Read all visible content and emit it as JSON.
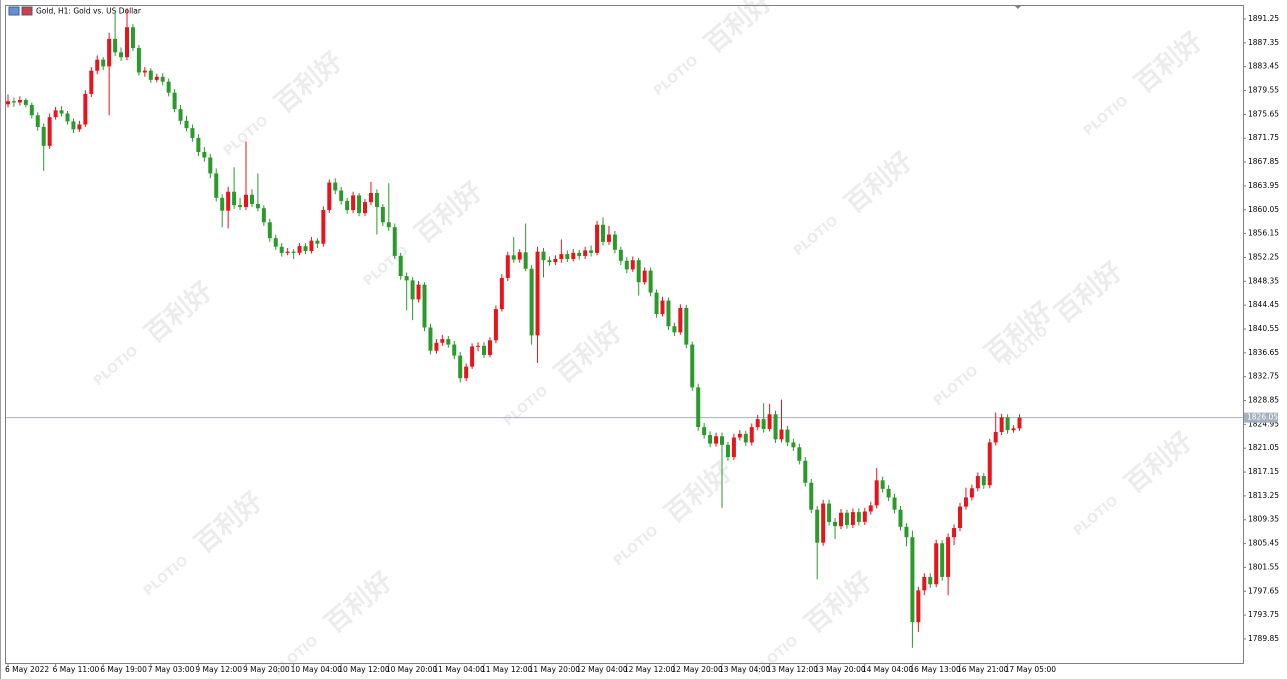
{
  "chart_data": {
    "type": "candlestick",
    "title": "Gold, H1:  Gold vs. US Dollar",
    "watermark": {
      "logo": "PLOTIO",
      "text": "百利好"
    },
    "up_color": "#e8141c",
    "down_color": "#2a9a2a",
    "grid": false,
    "current_price": 1826.05,
    "current_price_color": "#a4b0c0",
    "ylim": [
      1785.92,
      1893.54
    ],
    "yticks": [
      1891.25,
      1887.35,
      1883.45,
      1879.55,
      1875.65,
      1871.75,
      1867.85,
      1863.95,
      1860.05,
      1856.15,
      1852.25,
      1848.35,
      1844.45,
      1840.55,
      1836.65,
      1832.75,
      1828.85,
      1824.95,
      1821.05,
      1817.15,
      1813.25,
      1809.35,
      1805.45,
      1801.55,
      1797.65,
      1793.75,
      1789.85
    ],
    "categories": [
      "6 May 2022",
      null,
      null,
      null,
      null,
      null,
      null,
      null,
      "6 May 11:00",
      null,
      null,
      null,
      null,
      null,
      null,
      null,
      "6 May 19:00",
      null,
      null,
      null,
      null,
      null,
      null,
      null,
      "7 May 03:00",
      null,
      null,
      null,
      null,
      null,
      null,
      null,
      "9 May 12:00",
      null,
      null,
      null,
      null,
      null,
      null,
      null,
      "9 May 20:00",
      null,
      null,
      null,
      null,
      null,
      null,
      null,
      "10 May 04:00",
      null,
      null,
      null,
      null,
      null,
      null,
      null,
      "10 May 12:00",
      null,
      null,
      null,
      null,
      null,
      null,
      null,
      "10 May 20:00",
      null,
      null,
      null,
      null,
      null,
      null,
      null,
      "11 May 04:00",
      null,
      null,
      null,
      null,
      null,
      null,
      null,
      "11 May 12:00",
      null,
      null,
      null,
      null,
      null,
      null,
      null,
      "11 May 20:00",
      null,
      null,
      null,
      null,
      null,
      null,
      null,
      "12 May 04:00",
      null,
      null,
      null,
      null,
      null,
      null,
      null,
      "12 May 12:00",
      null,
      null,
      null,
      null,
      null,
      null,
      null,
      "12 May 20:00",
      null,
      null,
      null,
      null,
      null,
      null,
      null,
      "13 May 04:00",
      null,
      null,
      null,
      null,
      null,
      null,
      null,
      "13 May 12:00",
      null,
      null,
      null,
      null,
      null,
      null,
      null,
      "13 May 20:00",
      null,
      null,
      null,
      null,
      null,
      null,
      null,
      "14 May 04:00",
      null,
      null,
      null,
      null,
      null,
      null,
      null,
      "16 May 13:00",
      null,
      null,
      null,
      null,
      null,
      null,
      null,
      "16 May 21:00",
      null,
      null,
      null,
      null,
      null,
      null,
      null,
      "17 May 05:00",
      null,
      null
    ],
    "ohlc": [
      [
        1877.3,
        1878.9,
        1876.8,
        1877.8
      ],
      [
        1877.8,
        1878.4,
        1876.9,
        1877.6
      ],
      [
        1877.6,
        1878.6,
        1877.1,
        1878.0
      ],
      [
        1878.0,
        1878.3,
        1876.8,
        1877.2
      ],
      [
        1877.2,
        1877.6,
        1875.0,
        1875.5
      ],
      [
        1875.5,
        1876.0,
        1873.0,
        1873.6
      ],
      [
        1873.6,
        1874.2,
        1866.4,
        1870.5
      ],
      [
        1870.5,
        1875.8,
        1870.0,
        1875.2
      ],
      [
        1875.2,
        1876.9,
        1874.8,
        1876.3
      ],
      [
        1876.3,
        1877.0,
        1875.3,
        1875.8
      ],
      [
        1875.8,
        1876.2,
        1874.0,
        1874.5
      ],
      [
        1874.5,
        1875.0,
        1872.6,
        1873.2
      ],
      [
        1873.2,
        1874.6,
        1872.8,
        1874.0
      ],
      [
        1874.0,
        1879.6,
        1873.6,
        1879.0
      ],
      [
        1879.0,
        1883.4,
        1878.5,
        1882.8
      ],
      [
        1882.8,
        1885.3,
        1882.2,
        1884.6
      ],
      [
        1884.6,
        1885.0,
        1882.9,
        1883.5
      ],
      [
        1883.5,
        1889.0,
        1875.5,
        1888.0
      ],
      [
        1888.0,
        1892.5,
        1885.2,
        1885.8
      ],
      [
        1885.8,
        1886.6,
        1884.4,
        1885.0
      ],
      [
        1885.0,
        1893.0,
        1884.5,
        1889.9
      ],
      [
        1889.9,
        1890.4,
        1886.0,
        1886.5
      ],
      [
        1886.5,
        1887.0,
        1882.0,
        1882.5
      ],
      [
        1882.5,
        1883.4,
        1881.8,
        1882.8
      ],
      [
        1882.8,
        1883.2,
        1880.8,
        1881.3
      ],
      [
        1881.3,
        1882.3,
        1880.9,
        1881.8
      ],
      [
        1881.8,
        1882.4,
        1880.4,
        1881.0
      ],
      [
        1881.0,
        1881.5,
        1878.6,
        1879.2
      ],
      [
        1879.2,
        1879.8,
        1876.0,
        1876.5
      ],
      [
        1876.5,
        1877.2,
        1874.0,
        1874.6
      ],
      [
        1874.6,
        1875.4,
        1872.9,
        1873.4
      ],
      [
        1873.4,
        1874.0,
        1871.2,
        1871.8
      ],
      [
        1871.8,
        1872.4,
        1868.8,
        1869.5
      ],
      [
        1869.5,
        1870.3,
        1867.9,
        1868.6
      ],
      [
        1868.6,
        1869.2,
        1865.2,
        1866.0
      ],
      [
        1866.0,
        1866.8,
        1861.4,
        1862.0
      ],
      [
        1862.0,
        1862.6,
        1857.2,
        1859.9
      ],
      [
        1859.9,
        1863.8,
        1857.0,
        1863.0
      ],
      [
        1863.0,
        1867.0,
        1860.2,
        1860.8
      ],
      [
        1860.8,
        1862.0,
        1860.0,
        1860.5
      ],
      [
        1860.5,
        1871.2,
        1860.0,
        1862.5
      ],
      [
        1862.5,
        1863.4,
        1860.5,
        1861.0
      ],
      [
        1861.0,
        1866.0,
        1859.8,
        1860.3
      ],
      [
        1860.3,
        1860.8,
        1857.4,
        1858.0
      ],
      [
        1858.0,
        1858.6,
        1854.8,
        1855.4
      ],
      [
        1855.4,
        1856.0,
        1853.5,
        1854.0
      ],
      [
        1854.0,
        1854.6,
        1852.4,
        1853.0
      ],
      [
        1853.0,
        1853.8,
        1852.6,
        1853.2
      ],
      [
        1853.2,
        1853.6,
        1852.0,
        1853.0
      ],
      [
        1853.0,
        1854.6,
        1852.6,
        1854.1
      ],
      [
        1854.1,
        1854.6,
        1852.8,
        1853.3
      ],
      [
        1853.3,
        1855.6,
        1852.9,
        1855.0
      ],
      [
        1855.0,
        1855.4,
        1853.8,
        1854.5
      ],
      [
        1854.5,
        1860.6,
        1854.0,
        1860.0
      ],
      [
        1860.0,
        1865.0,
        1859.5,
        1864.5
      ],
      [
        1864.5,
        1865.2,
        1862.6,
        1863.2
      ],
      [
        1863.2,
        1863.8,
        1860.9,
        1861.5
      ],
      [
        1861.5,
        1862.0,
        1859.4,
        1860.0
      ],
      [
        1860.0,
        1863.0,
        1859.5,
        1862.4
      ],
      [
        1862.4,
        1862.8,
        1859.0,
        1859.5
      ],
      [
        1859.5,
        1861.8,
        1859.0,
        1861.3
      ],
      [
        1861.3,
        1864.6,
        1860.8,
        1862.8
      ],
      [
        1862.8,
        1863.4,
        1856.0,
        1860.5
      ],
      [
        1860.5,
        1861.0,
        1857.4,
        1858.0
      ],
      [
        1858.0,
        1864.4,
        1856.6,
        1857.2
      ],
      [
        1857.2,
        1857.8,
        1852.0,
        1852.5
      ],
      [
        1852.5,
        1853.0,
        1848.6,
        1849.2
      ],
      [
        1849.2,
        1849.8,
        1843.6,
        1848.5
      ],
      [
        1848.5,
        1849.0,
        1842.0,
        1845.4
      ],
      [
        1845.4,
        1848.4,
        1844.9,
        1847.8
      ],
      [
        1847.8,
        1848.2,
        1840.2,
        1840.8
      ],
      [
        1840.8,
        1841.4,
        1836.4,
        1837.0
      ],
      [
        1837.0,
        1838.9,
        1836.5,
        1838.3
      ],
      [
        1838.3,
        1839.6,
        1837.8,
        1838.9
      ],
      [
        1838.9,
        1839.4,
        1837.5,
        1838.0
      ],
      [
        1838.0,
        1838.6,
        1835.6,
        1836.2
      ],
      [
        1836.2,
        1836.8,
        1831.8,
        1832.5
      ],
      [
        1832.5,
        1834.9,
        1832.0,
        1834.4
      ],
      [
        1834.4,
        1838.2,
        1834.0,
        1837.7
      ],
      [
        1837.7,
        1838.4,
        1836.9,
        1837.8
      ],
      [
        1837.8,
        1838.4,
        1835.8,
        1836.3
      ],
      [
        1836.3,
        1839.2,
        1835.9,
        1838.7
      ],
      [
        1838.7,
        1844.4,
        1838.2,
        1843.8
      ],
      [
        1843.8,
        1849.5,
        1843.4,
        1848.9
      ],
      [
        1848.9,
        1853.2,
        1848.4,
        1852.6
      ],
      [
        1852.6,
        1855.6,
        1851.4,
        1851.9
      ],
      [
        1851.9,
        1853.6,
        1851.4,
        1853.1
      ],
      [
        1853.1,
        1857.8,
        1850.0,
        1850.4
      ],
      [
        1850.4,
        1851.0,
        1838.0,
        1839.5
      ],
      [
        1839.5,
        1854.0,
        1835.0,
        1853.2
      ],
      [
        1853.2,
        1853.8,
        1849.0,
        1851.8
      ],
      [
        1851.8,
        1852.4,
        1850.9,
        1851.5
      ],
      [
        1851.5,
        1852.6,
        1851.0,
        1852.0
      ],
      [
        1852.0,
        1855.2,
        1851.4,
        1852.8
      ],
      [
        1852.8,
        1853.4,
        1851.5,
        1852.0
      ],
      [
        1852.0,
        1853.6,
        1851.6,
        1853.0
      ],
      [
        1853.0,
        1853.5,
        1851.9,
        1852.5
      ],
      [
        1852.5,
        1854.0,
        1852.0,
        1853.4
      ],
      [
        1853.4,
        1854.2,
        1852.4,
        1853.0
      ],
      [
        1853.0,
        1858.2,
        1852.6,
        1857.6
      ],
      [
        1857.6,
        1858.8,
        1854.2,
        1854.8
      ],
      [
        1854.8,
        1857.4,
        1854.3,
        1856.0
      ],
      [
        1856.0,
        1856.6,
        1852.9,
        1853.5
      ],
      [
        1853.5,
        1854.0,
        1851.0,
        1851.7
      ],
      [
        1851.7,
        1852.3,
        1849.7,
        1850.3
      ],
      [
        1850.3,
        1852.4,
        1849.9,
        1851.8
      ],
      [
        1851.8,
        1852.2,
        1846.0,
        1848.2
      ],
      [
        1848.2,
        1850.6,
        1847.8,
        1850.1
      ],
      [
        1850.1,
        1850.6,
        1845.9,
        1846.5
      ],
      [
        1846.5,
        1847.0,
        1842.4,
        1843.0
      ],
      [
        1843.0,
        1845.8,
        1842.6,
        1845.2
      ],
      [
        1845.2,
        1845.7,
        1840.4,
        1841.0
      ],
      [
        1841.0,
        1841.6,
        1839.4,
        1840.0
      ],
      [
        1840.0,
        1844.6,
        1839.6,
        1844.0
      ],
      [
        1844.0,
        1844.5,
        1837.4,
        1838.0
      ],
      [
        1838.0,
        1838.5,
        1830.4,
        1831.0
      ],
      [
        1831.0,
        1831.6,
        1823.9,
        1824.5
      ],
      [
        1824.5,
        1825.2,
        1822.6,
        1823.2
      ],
      [
        1823.2,
        1823.8,
        1821.2,
        1821.8
      ],
      [
        1821.8,
        1823.6,
        1821.3,
        1823.0
      ],
      [
        1823.0,
        1823.6,
        1811.3,
        1821.6
      ],
      [
        1821.6,
        1822.1,
        1819.0,
        1819.6
      ],
      [
        1819.6,
        1823.4,
        1819.1,
        1822.8
      ],
      [
        1822.8,
        1824.0,
        1822.3,
        1823.4
      ],
      [
        1823.4,
        1823.9,
        1821.4,
        1822.0
      ],
      [
        1822.0,
        1825.1,
        1821.5,
        1824.5
      ],
      [
        1824.5,
        1826.5,
        1824.0,
        1825.8
      ],
      [
        1825.8,
        1828.4,
        1823.6,
        1824.2
      ],
      [
        1824.2,
        1828.3,
        1823.8,
        1826.6
      ],
      [
        1826.6,
        1827.2,
        1821.9,
        1822.5
      ],
      [
        1822.5,
        1829.0,
        1822.0,
        1824.1
      ],
      [
        1824.1,
        1824.7,
        1821.4,
        1822.0
      ],
      [
        1822.0,
        1822.6,
        1820.6,
        1821.2
      ],
      [
        1821.2,
        1821.8,
        1818.4,
        1819.0
      ],
      [
        1819.0,
        1819.6,
        1814.8,
        1815.4
      ],
      [
        1815.4,
        1816.0,
        1810.4,
        1811.0
      ],
      [
        1811.0,
        1811.6,
        1799.6,
        1805.6
      ],
      [
        1805.6,
        1812.6,
        1805.1,
        1812.0
      ],
      [
        1812.0,
        1812.6,
        1808.4,
        1809.0
      ],
      [
        1809.0,
        1809.6,
        1806.2,
        1808.3
      ],
      [
        1808.3,
        1811.1,
        1807.8,
        1810.5
      ],
      [
        1810.5,
        1811.0,
        1807.9,
        1808.5
      ],
      [
        1808.5,
        1811.2,
        1808.0,
        1810.6
      ],
      [
        1810.6,
        1811.2,
        1808.4,
        1809.0
      ],
      [
        1809.0,
        1811.3,
        1808.5,
        1810.7
      ],
      [
        1810.7,
        1812.3,
        1810.2,
        1811.7
      ],
      [
        1811.7,
        1817.8,
        1811.2,
        1815.8
      ],
      [
        1815.8,
        1816.4,
        1813.8,
        1814.4
      ],
      [
        1814.4,
        1815.0,
        1812.4,
        1813.0
      ],
      [
        1813.0,
        1813.6,
        1810.4,
        1811.0
      ],
      [
        1811.0,
        1811.6,
        1807.6,
        1808.2
      ],
      [
        1808.2,
        1808.8,
        1805.0,
        1806.5
      ],
      [
        1806.5,
        1807.6,
        1788.4,
        1792.6
      ],
      [
        1792.6,
        1798.4,
        1791.0,
        1797.8
      ],
      [
        1797.8,
        1800.6,
        1797.0,
        1800.0
      ],
      [
        1800.0,
        1800.6,
        1798.2,
        1798.8
      ],
      [
        1798.8,
        1806.1,
        1798.3,
        1805.5
      ],
      [
        1805.5,
        1806.0,
        1799.4,
        1800.0
      ],
      [
        1800.0,
        1807.1,
        1797.0,
        1806.5
      ],
      [
        1806.5,
        1808.6,
        1805.2,
        1808.0
      ],
      [
        1808.0,
        1812.1,
        1807.5,
        1811.5
      ],
      [
        1811.5,
        1814.6,
        1811.0,
        1813.0
      ],
      [
        1813.0,
        1815.1,
        1812.5,
        1814.5
      ],
      [
        1814.5,
        1817.1,
        1814.0,
        1816.5
      ],
      [
        1816.5,
        1817.0,
        1814.4,
        1815.0
      ],
      [
        1815.0,
        1822.6,
        1814.5,
        1822.0
      ],
      [
        1822.0,
        1826.9,
        1821.5,
        1823.7
      ],
      [
        1823.7,
        1826.7,
        1823.2,
        1826.1
      ],
      [
        1826.1,
        1826.6,
        1823.4,
        1824.0
      ],
      [
        1824.0,
        1824.8,
        1823.6,
        1824.3
      ],
      [
        1824.3,
        1826.6,
        1823.9,
        1826.05
      ]
    ]
  }
}
